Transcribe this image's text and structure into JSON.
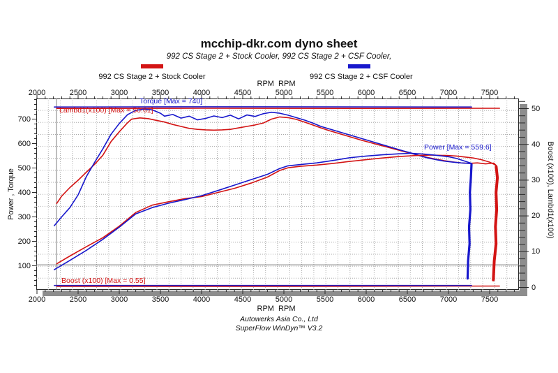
{
  "header": {
    "title": "mcchip-dkr.com dyno sheet",
    "subtitle": "992 CS Stage 2 + Stock Cooler, 992 CS Stage 2 + CSF Cooler,"
  },
  "legend": [
    {
      "label": "992 CS Stage 2 + Stock Cooler",
      "color": "#d31414"
    },
    {
      "label": "992 CS Stage 2 + CSF Cooler",
      "color": "#1717cc"
    }
  ],
  "footer": {
    "line1": "Autowerks Asia Co., Ltd",
    "line2": "SuperFlow WinDyn™ V3.2"
  },
  "chart_data": {
    "type": "line",
    "title": "mcchip-dkr.com dyno sheet",
    "x_axis": {
      "label_top": "RPM  RPM",
      "label_bottom": "RPM  RPM",
      "ticks": [
        2000,
        2500,
        3000,
        3500,
        4000,
        4500,
        5000,
        5500,
        6000,
        6500,
        7000,
        7500
      ],
      "range": [
        1990,
        7860
      ],
      "grid": "dotted"
    },
    "y_left": {
      "label": "Power , Torque",
      "ticks": [
        100,
        200,
        300,
        400,
        500,
        600,
        700
      ],
      "range": [
        0,
        784
      ]
    },
    "y_right": {
      "label": "Boost (x100), Lambd1(x100)",
      "ticks": [
        0,
        10,
        20,
        30,
        40,
        50
      ],
      "range": [
        0,
        52.8
      ]
    },
    "annotations": [
      {
        "id": "torque",
        "text": "Torque [Max = 740]",
        "color": "#1717cc"
      },
      {
        "id": "lambda",
        "text": "Lambd1(x100) [Max = 50.61]",
        "color": "#d31414"
      },
      {
        "id": "power",
        "text": "Power [Max = 559.6]",
        "color": "#1717cc"
      },
      {
        "id": "boost",
        "text": "Boost (x100) [Max = 0.55]",
        "color": "#d31414"
      }
    ],
    "cursor": {
      "rpm": 2237,
      "value_left": 104
    },
    "series": [
      {
        "id": "lambda-stock",
        "name": "Lambd1(x100) Stock Cooler",
        "axis": "right",
        "color": "#d31414",
        "width": 1.6,
        "points": [
          [
            2240,
            50.05
          ],
          [
            4000,
            50.1
          ],
          [
            6000,
            50.05
          ],
          [
            7620,
            50.1
          ]
        ]
      },
      {
        "id": "lambda-csf",
        "name": "Lambd1(x100) CSF Cooler",
        "axis": "right",
        "color": "#1d14c4",
        "width": 1.6,
        "points": [
          [
            2210,
            50.45
          ],
          [
            4000,
            50.5
          ],
          [
            7280,
            50.45
          ]
        ]
      },
      {
        "id": "boost-stock",
        "name": "Boost (x100) Stock Cooler",
        "axis": "right",
        "color": "#d31414",
        "width": 1.5,
        "points": [
          [
            2240,
            0.3
          ],
          [
            5000,
            0.3
          ],
          [
            7620,
            0.4
          ]
        ]
      },
      {
        "id": "boost-csf",
        "name": "Boost (x100) CSF Cooler",
        "axis": "right",
        "color": "#2a1db8",
        "width": 1.6,
        "points": [
          [
            2210,
            0.55
          ],
          [
            5000,
            0.55
          ],
          [
            7280,
            0.55
          ]
        ]
      },
      {
        "id": "torque-stock",
        "name": "Torque Stock Cooler",
        "axis": "left",
        "color": "#d31414",
        "width": 1.6,
        "points": [
          [
            2240,
            355
          ],
          [
            2300,
            385
          ],
          [
            2400,
            420
          ],
          [
            2500,
            450
          ],
          [
            2600,
            483
          ],
          [
            2700,
            515
          ],
          [
            2800,
            552
          ],
          [
            2900,
            608
          ],
          [
            3000,
            648
          ],
          [
            3100,
            685
          ],
          [
            3150,
            700
          ],
          [
            3250,
            705
          ],
          [
            3350,
            702
          ],
          [
            3450,
            695
          ],
          [
            3550,
            688
          ],
          [
            3650,
            678
          ],
          [
            3750,
            670
          ],
          [
            3850,
            662
          ],
          [
            3950,
            658
          ],
          [
            4050,
            656
          ],
          [
            4150,
            655
          ],
          [
            4250,
            656
          ],
          [
            4350,
            658
          ],
          [
            4450,
            664
          ],
          [
            4550,
            670
          ],
          [
            4650,
            676
          ],
          [
            4750,
            684
          ],
          [
            4850,
            700
          ],
          [
            4950,
            709
          ],
          [
            5050,
            706
          ],
          [
            5150,
            699
          ],
          [
            5250,
            688
          ],
          [
            5350,
            676
          ],
          [
            5450,
            664
          ],
          [
            5550,
            653
          ],
          [
            5650,
            643
          ],
          [
            5750,
            633
          ],
          [
            5850,
            623
          ],
          [
            5950,
            613
          ],
          [
            6050,
            604
          ],
          [
            6150,
            595
          ],
          [
            6250,
            586
          ],
          [
            6350,
            577
          ],
          [
            6450,
            568
          ],
          [
            6550,
            559
          ],
          [
            6650,
            551
          ],
          [
            6750,
            543
          ],
          [
            6850,
            536
          ],
          [
            6950,
            530
          ],
          [
            7050,
            525
          ],
          [
            7150,
            521
          ],
          [
            7250,
            519
          ],
          [
            7350,
            521
          ],
          [
            7450,
            517
          ],
          [
            7550,
            520
          ],
          [
            7580,
            510
          ]
        ]
      },
      {
        "id": "torque-csf",
        "name": "Torque CSF Cooler",
        "axis": "left",
        "color": "#1717cc",
        "width": 1.6,
        "points": [
          [
            2210,
            264
          ],
          [
            2300,
            300
          ],
          [
            2400,
            338
          ],
          [
            2500,
            390
          ],
          [
            2600,
            465
          ],
          [
            2700,
            523
          ],
          [
            2800,
            578
          ],
          [
            2900,
            638
          ],
          [
            3000,
            682
          ],
          [
            3100,
            718
          ],
          [
            3200,
            736
          ],
          [
            3300,
            741
          ],
          [
            3400,
            738
          ],
          [
            3500,
            724
          ],
          [
            3550,
            712
          ],
          [
            3650,
            719
          ],
          [
            3750,
            704
          ],
          [
            3850,
            712
          ],
          [
            3950,
            697
          ],
          [
            4050,
            703
          ],
          [
            4150,
            713
          ],
          [
            4250,
            706
          ],
          [
            4350,
            716
          ],
          [
            4450,
            701
          ],
          [
            4550,
            717
          ],
          [
            4650,
            711
          ],
          [
            4750,
            722
          ],
          [
            4850,
            728
          ],
          [
            4950,
            724
          ],
          [
            5050,
            716
          ],
          [
            5150,
            706
          ],
          [
            5250,
            696
          ],
          [
            5350,
            684
          ],
          [
            5450,
            670
          ],
          [
            5550,
            660
          ],
          [
            5650,
            650
          ],
          [
            5750,
            640
          ],
          [
            5850,
            630
          ],
          [
            5950,
            620
          ],
          [
            6050,
            610
          ],
          [
            6150,
            600
          ],
          [
            6250,
            590
          ],
          [
            6350,
            580
          ],
          [
            6450,
            570
          ],
          [
            6550,
            561
          ],
          [
            6650,
            550
          ],
          [
            6750,
            541
          ],
          [
            6850,
            534
          ],
          [
            6950,
            528
          ],
          [
            7050,
            524
          ],
          [
            7150,
            521
          ],
          [
            7280,
            518
          ]
        ]
      },
      {
        "id": "power-stock",
        "name": "Power Stock Cooler",
        "axis": "left",
        "color": "#d31414",
        "width": 1.6,
        "points": [
          [
            2240,
            108
          ],
          [
            2400,
            140
          ],
          [
            2600,
            178
          ],
          [
            2800,
            215
          ],
          [
            3000,
            262
          ],
          [
            3200,
            318
          ],
          [
            3400,
            348
          ],
          [
            3600,
            362
          ],
          [
            3800,
            375
          ],
          [
            4000,
            383
          ],
          [
            4200,
            400
          ],
          [
            4400,
            417
          ],
          [
            4600,
            438
          ],
          [
            4800,
            463
          ],
          [
            4950,
            490
          ],
          [
            5050,
            501
          ],
          [
            5200,
            507
          ],
          [
            5400,
            512
          ],
          [
            5600,
            519
          ],
          [
            5800,
            527
          ],
          [
            6000,
            534
          ],
          [
            6200,
            541
          ],
          [
            6400,
            547
          ],
          [
            6600,
            551
          ],
          [
            6800,
            553
          ],
          [
            7000,
            551
          ],
          [
            7100,
            549
          ],
          [
            7200,
            545
          ],
          [
            7300,
            541
          ],
          [
            7400,
            534
          ],
          [
            7500,
            524
          ],
          [
            7580,
            511
          ]
        ]
      },
      {
        "id": "power-csf",
        "name": "Power CSF Cooler",
        "axis": "left",
        "color": "#1717cc",
        "width": 1.6,
        "points": [
          [
            2210,
            84
          ],
          [
            2400,
            122
          ],
          [
            2600,
            163
          ],
          [
            2800,
            208
          ],
          [
            3000,
            258
          ],
          [
            3200,
            312
          ],
          [
            3400,
            338
          ],
          [
            3600,
            356
          ],
          [
            3800,
            371
          ],
          [
            4000,
            387
          ],
          [
            4200,
            408
          ],
          [
            4400,
            430
          ],
          [
            4600,
            452
          ],
          [
            4800,
            474
          ],
          [
            4950,
            498
          ],
          [
            5050,
            509
          ],
          [
            5200,
            514
          ],
          [
            5400,
            521
          ],
          [
            5600,
            531
          ],
          [
            5800,
            542
          ],
          [
            6000,
            549
          ],
          [
            6200,
            554
          ],
          [
            6400,
            558
          ],
          [
            6550,
            560
          ],
          [
            6700,
            557
          ],
          [
            6850,
            552
          ],
          [
            7000,
            546
          ],
          [
            7100,
            539
          ],
          [
            7200,
            528
          ],
          [
            7280,
            519
          ]
        ]
      },
      {
        "id": "rundown-csf",
        "name": "Run end CSF Cooler",
        "axis": "left",
        "color": "#1717cc",
        "width": 3.2,
        "points": [
          [
            7280,
            515
          ],
          [
            7272,
            460
          ],
          [
            7260,
            400
          ],
          [
            7266,
            330
          ],
          [
            7250,
            260
          ],
          [
            7256,
            190
          ],
          [
            7238,
            120
          ],
          [
            7232,
            48
          ]
        ]
      },
      {
        "id": "rundown-stock",
        "name": "Run end Stock Cooler",
        "axis": "left",
        "color": "#d31414",
        "width": 4,
        "points": [
          [
            7580,
            505
          ],
          [
            7594,
            460
          ],
          [
            7578,
            400
          ],
          [
            7586,
            330
          ],
          [
            7570,
            260
          ],
          [
            7578,
            190
          ],
          [
            7556,
            120
          ],
          [
            7545,
            42
          ]
        ]
      }
    ]
  }
}
